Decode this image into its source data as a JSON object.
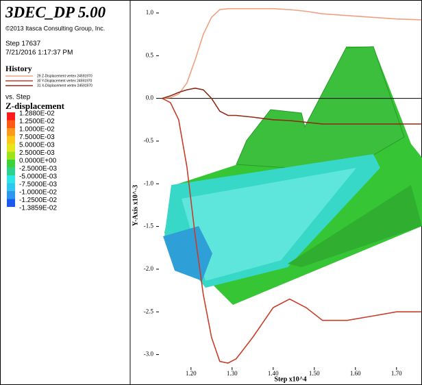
{
  "panel": {
    "title": "3DEC_DP 5.00",
    "copyright": "©2013 Itasca Consulting Group, Inc.",
    "step": "Step 17637",
    "datetime": "7/21/2016 1:17:37 PM",
    "history_heading": "History",
    "history_entries": [
      "29 Z-Displacement vertex 24591970",
      "30 Y-Displacement vertex 24591970",
      "31 X-Displacement vertex 24591970"
    ],
    "vs": "vs. Step",
    "contour_heading": "Z-displacement",
    "contour_labels": [
      "1.2880E-02",
      "1.2500E-02",
      "1.0000E-02",
      "7.5000E-03",
      "5.0000E-03",
      "2.5000E-03",
      "0.0000E+00",
      "-2.5000E-03",
      "-5.0000E-03",
      "-7.5000E-03",
      "-1.0000E-02",
      "-1.2500E-02",
      "-1.3859E-02"
    ],
    "contour_colors": [
      "#ff1a1a",
      "#ff5a1a",
      "#ff9a1a",
      "#ffc81a",
      "#e6e61a",
      "#9ae61a",
      "#3cd23c",
      "#2ed28c",
      "#2ee6e6",
      "#2ec8f0",
      "#2e96f0",
      "#1a5af0"
    ]
  },
  "chart_data": {
    "type": "line",
    "xlabel": "Step x10^4",
    "ylabel": "Y-Axis x10^-3",
    "x": [
      1.13,
      1.15,
      1.17,
      1.19,
      1.21,
      1.23,
      1.25,
      1.27,
      1.29,
      1.31,
      1.35,
      1.4,
      1.44,
      1.48,
      1.52,
      1.58,
      1.64,
      1.7,
      1.76
    ],
    "series": [
      {
        "name": "29 Z-Displacement vertex 24591970",
        "color": "#f0a080",
        "values": [
          0,
          0.01,
          0.05,
          0.18,
          0.45,
          0.75,
          0.95,
          1.04,
          1.05,
          1.05,
          1.05,
          1.05,
          1.04,
          1.02,
          0.99,
          0.97,
          0.95,
          0.93,
          0.92
        ]
      },
      {
        "name": "30 Y-Displacement vertex 24591970",
        "color": "#c83c28",
        "values": [
          0,
          -0.05,
          -0.25,
          -0.8,
          -1.6,
          -2.3,
          -2.8,
          -3.08,
          -3.1,
          -3.05,
          -2.8,
          -2.45,
          -2.35,
          -2.45,
          -2.6,
          -2.6,
          -2.55,
          -2.5,
          -2.5
        ]
      },
      {
        "name": "31 X-Displacement vertex 24591970",
        "color": "#8c2814",
        "values": [
          0,
          0.03,
          0.07,
          0.1,
          0.12,
          0.1,
          0.0,
          -0.15,
          -0.2,
          -0.2,
          -0.22,
          -0.25,
          -0.26,
          -0.28,
          -0.3,
          -0.3,
          -0.3,
          -0.3,
          -0.3
        ]
      }
    ],
    "xlim": [
      1.122,
      1.762
    ],
    "ylim": [
      -3.18,
      1.12
    ],
    "xticks": [
      {
        "value": 1.2,
        "label": "1.20"
      },
      {
        "value": 1.3,
        "label": "1.30"
      },
      {
        "value": 1.4,
        "label": "1.40"
      },
      {
        "value": 1.5,
        "label": "1.50"
      },
      {
        "value": 1.6,
        "label": "1.60"
      },
      {
        "value": 1.7,
        "label": "1.70"
      }
    ],
    "yticks": [
      {
        "value": 1,
        "label": "1.0"
      },
      0.5,
      {
        "value": 0,
        "label": "0.0"
      },
      -0.5,
      {
        "value": -1,
        "label": "-1.0"
      },
      -1.5,
      {
        "value": -2,
        "label": "-2.0"
      },
      -2.5,
      {
        "value": -3,
        "label": "-3.0"
      }
    ]
  }
}
